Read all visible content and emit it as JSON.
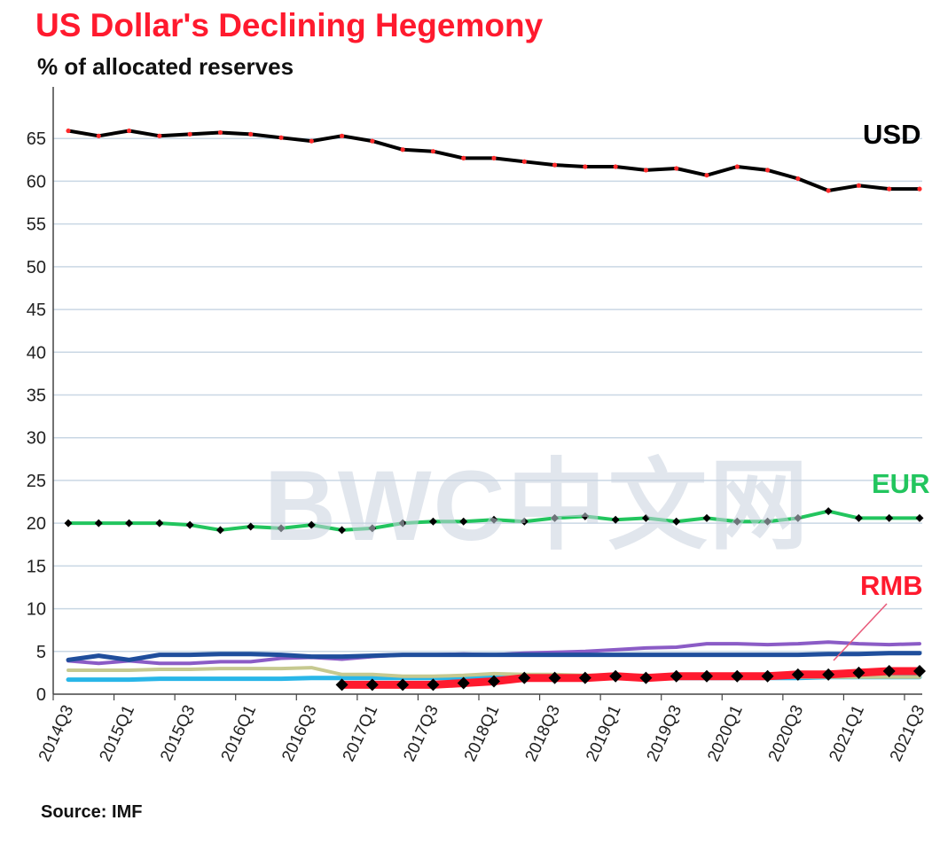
{
  "header": {
    "title": "US Dollar's  Declining Hegemony",
    "subtitle": "% of allocated reserves"
  },
  "footer": {
    "source": "Source: IMF"
  },
  "watermark": "BWC中文网",
  "colors": {
    "title": "#ff1a2e",
    "grid": "#c9d7e4",
    "usd_line": "#000000",
    "usd_markers": "#ff2b2b",
    "eur_line": "#22c55e",
    "eur_markers": "#000000",
    "rmb_line": "#ff1a2e",
    "rmb_markers": "#000000",
    "rmb_label": "#ff1a2e",
    "eur_label": "#22c55e",
    "usd_label": "#000000"
  },
  "chart_data": {
    "type": "line",
    "ylim": [
      0,
      70
    ],
    "yticks": [
      0,
      5,
      10,
      15,
      20,
      25,
      30,
      35,
      40,
      45,
      50,
      55,
      60,
      65
    ],
    "grid": "horizontal",
    "x": [
      "2014Q3",
      "2014Q4",
      "2015Q1",
      "2015Q2",
      "2015Q3",
      "2015Q4",
      "2016Q1",
      "2016Q2",
      "2016Q3",
      "2016Q4",
      "2017Q1",
      "2017Q2",
      "2017Q3",
      "2017Q4",
      "2018Q1",
      "2018Q2",
      "2018Q3",
      "2018Q4",
      "2019Q1",
      "2019Q2",
      "2019Q3",
      "2019Q4",
      "2020Q1",
      "2020Q2",
      "2020Q3",
      "2020Q4",
      "2021Q1",
      "2021Q2",
      "2021Q3"
    ],
    "xtick_labels": [
      "2014Q3",
      "2015Q1",
      "2015Q3",
      "2016Q1",
      "2016Q3",
      "2017Q1",
      "2017Q3",
      "2018Q1",
      "2018Q3",
      "2019Q1",
      "2019Q3",
      "2020Q1",
      "2020Q3",
      "2021Q1",
      "2021Q3"
    ],
    "series": [
      {
        "name": "USD",
        "color": "#000000",
        "marker": "dot",
        "marker_color": "#ff2b2b",
        "width": 4,
        "values": [
          65.9,
          65.3,
          65.9,
          65.3,
          65.5,
          65.7,
          65.5,
          65.1,
          64.7,
          65.3,
          64.7,
          63.7,
          63.5,
          62.7,
          62.7,
          62.3,
          61.9,
          61.7,
          61.7,
          61.3,
          61.5,
          60.7,
          61.7,
          61.3,
          60.3,
          58.9,
          59.5,
          59.1,
          59.1
        ]
      },
      {
        "name": "EUR",
        "color": "#22c55e",
        "marker": "diamond",
        "marker_color": "#000000",
        "width": 4,
        "values": [
          20.0,
          20.0,
          20.0,
          20.0,
          19.8,
          19.2,
          19.6,
          19.4,
          19.8,
          19.2,
          19.4,
          20.0,
          20.2,
          20.2,
          20.4,
          20.2,
          20.6,
          20.8,
          20.4,
          20.6,
          20.2,
          20.6,
          20.2,
          20.2,
          20.6,
          21.4,
          20.6,
          20.6,
          20.6
        ]
      },
      {
        "name": "RMB",
        "color": "#ff1a2e",
        "marker": "diamond",
        "marker_color": "#000000",
        "width": 9,
        "values": [
          null,
          null,
          null,
          null,
          null,
          null,
          null,
          null,
          null,
          1.1,
          1.1,
          1.1,
          1.1,
          1.3,
          1.5,
          1.9,
          1.9,
          1.9,
          2.1,
          1.9,
          2.1,
          2.1,
          2.1,
          2.1,
          2.3,
          2.3,
          2.5,
          2.7,
          2.7
        ]
      },
      {
        "color": "#1f4e9c",
        "width": 5,
        "values": [
          4.0,
          4.5,
          4.0,
          4.6,
          4.6,
          4.7,
          4.7,
          4.6,
          4.4,
          4.4,
          4.5,
          4.6,
          4.6,
          4.6,
          4.6,
          4.6,
          4.6,
          4.6,
          4.6,
          4.6,
          4.6,
          4.6,
          4.6,
          4.6,
          4.6,
          4.7,
          4.7,
          4.8,
          4.8
        ]
      },
      {
        "color": "#8b5cc6",
        "width": 4,
        "values": [
          3.9,
          3.6,
          3.9,
          3.6,
          3.6,
          3.8,
          3.8,
          4.2,
          4.3,
          4.1,
          4.4,
          4.6,
          4.6,
          4.7,
          4.6,
          4.8,
          4.9,
          5.0,
          5.2,
          5.4,
          5.5,
          5.9,
          5.9,
          5.8,
          5.9,
          6.1,
          5.9,
          5.8,
          5.9
        ]
      },
      {
        "color": "#c6c990",
        "width": 4,
        "values": [
          2.8,
          2.8,
          2.8,
          2.9,
          2.9,
          3.0,
          3.0,
          3.0,
          3.1,
          2.3,
          2.3,
          2.1,
          2.1,
          2.2,
          2.4,
          2.3,
          2.3,
          2.2,
          2.2,
          2.2,
          2.1,
          2.0,
          2.0,
          2.0,
          2.0,
          2.0,
          2.0,
          2.0,
          2.0
        ]
      },
      {
        "color": "#29b6e8",
        "width": 5,
        "values": [
          1.7,
          1.7,
          1.7,
          1.8,
          1.8,
          1.8,
          1.8,
          1.8,
          1.9,
          1.9,
          1.9,
          1.9,
          1.9,
          1.9,
          2.0,
          2.0,
          2.0,
          2.0,
          2.0,
          1.9,
          1.9,
          1.9,
          1.9,
          1.9,
          1.9,
          2.0,
          2.0,
          2.0,
          2.0
        ]
      },
      {
        "color": "#f0a830",
        "width": 3,
        "values": [
          null,
          null,
          null,
          null,
          null,
          null,
          null,
          null,
          null,
          null,
          null,
          null,
          null,
          null,
          null,
          null,
          null,
          null,
          null,
          null,
          null,
          null,
          null,
          null,
          2.0,
          2.1,
          2.0,
          2.2,
          2.3
        ]
      }
    ],
    "annotations": [
      {
        "text": "USD",
        "color": "#000000"
      },
      {
        "text": "EUR",
        "color": "#22c55e"
      },
      {
        "text": "RMB",
        "color": "#ff1a2e"
      }
    ]
  }
}
